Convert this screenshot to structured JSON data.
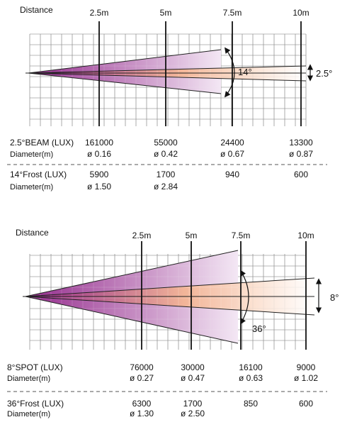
{
  "diagrams": [
    {
      "distance_label": "Distance",
      "distances": [
        "2.5m",
        "5m",
        "7.5m",
        "10m"
      ],
      "narrow_angle": "2.5°",
      "wide_angle": "14°",
      "rows": [
        {
          "label": "2.5°BEAM (LUX)",
          "values": [
            "161000",
            "55000",
            "24400",
            "13300"
          ]
        },
        {
          "label": "Diameter(m)",
          "values": [
            "ø 0.16",
            "ø 0.42",
            "ø 0.67",
            "ø 0.87"
          ]
        },
        {
          "label": "14°Frost (LUX)",
          "values": [
            "5900",
            "1700",
            "940",
            "600"
          ]
        },
        {
          "label": "Diameter(m)",
          "values": [
            "ø 1.50",
            "ø 2.84"
          ]
        }
      ]
    },
    {
      "distance_label": "Distance",
      "distances": [
        "2.5m",
        "5m",
        "7.5m",
        "10m"
      ],
      "narrow_angle": "8°",
      "wide_angle": "36°",
      "rows": [
        {
          "label": "8°SPOT (LUX)",
          "values": [
            "76000",
            "30000",
            "16100",
            "9000"
          ]
        },
        {
          "label": "Diameter(m)",
          "values": [
            "ø 0.27",
            "ø 0.47",
            "ø 0.63",
            "ø 1.02"
          ]
        },
        {
          "label": "36°Frost (LUX)",
          "values": [
            "6300",
            "1700",
            "850",
            "600"
          ]
        },
        {
          "label": "Diameter(m)",
          "values": [
            "ø 1.30",
            "ø 2.50"
          ]
        }
      ]
    }
  ],
  "colors": {
    "grid": "#555555",
    "beam_origin": "#8e1f86",
    "wide_beam_end": "#f3e6f4",
    "narrow_beam": "#f6b48c",
    "divider": "#555555"
  }
}
